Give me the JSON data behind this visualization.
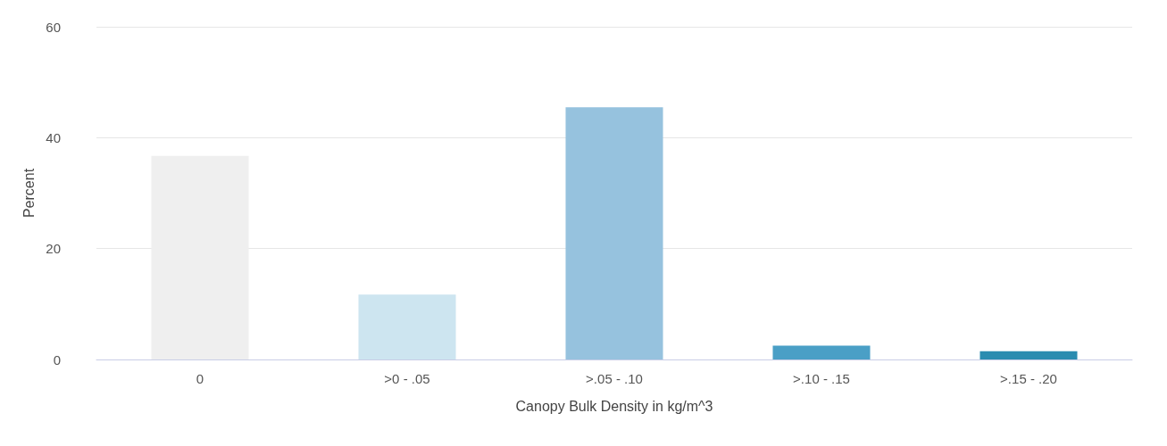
{
  "chart_data": {
    "type": "bar",
    "xlabel": "Canopy Bulk Density in kg/m^3",
    "ylabel": "Percent",
    "categories": [
      "0",
      ">0 - .05",
      ">.05 - .10",
      ">.10 - .15",
      ">.15 - .20"
    ],
    "values": [
      36.7,
      11.7,
      45.5,
      2.5,
      1.5
    ],
    "colors": [
      "#efefef",
      "#cde5f0",
      "#96c2de",
      "#4a9fc6",
      "#2a8cb0"
    ],
    "ylim": [
      0,
      60
    ],
    "yticks": [
      0,
      20,
      40,
      60
    ],
    "grid": "y"
  }
}
